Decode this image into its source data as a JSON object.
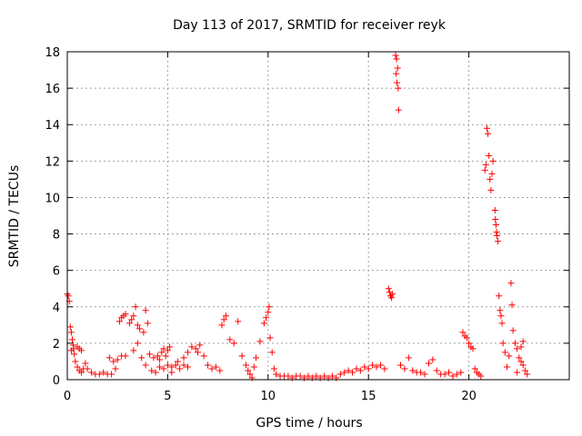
{
  "chart_data": {
    "type": "scatter",
    "title": "Day 113 of 2017, SRMTID for receiver reyk",
    "xlabel": "GPS time / hours",
    "ylabel": "SRMTID / TECUs",
    "xlim": [
      0,
      25
    ],
    "ylim": [
      0,
      18
    ],
    "xticks": [
      0,
      5,
      10,
      15,
      20
    ],
    "yticks": [
      0,
      2,
      4,
      6,
      8,
      10,
      12,
      14,
      16,
      18
    ],
    "grid": true,
    "marker": "plus",
    "color": "#ff0000",
    "series": [
      {
        "points": [
          [
            0.0,
            4.7
          ],
          [
            0.05,
            4.6
          ],
          [
            0.1,
            4.3
          ],
          [
            0.15,
            2.9
          ],
          [
            0.2,
            2.6
          ],
          [
            0.25,
            2.2
          ],
          [
            0.3,
            1.7
          ],
          [
            0.35,
            1.4
          ],
          [
            0.4,
            1.0
          ],
          [
            0.5,
            0.7
          ],
          [
            0.6,
            0.5
          ],
          [
            0.7,
            0.4
          ],
          [
            0.8,
            0.6
          ],
          [
            0.9,
            0.9
          ],
          [
            0.2,
            1.6
          ],
          [
            0.3,
            1.9
          ],
          [
            0.5,
            1.8
          ],
          [
            0.6,
            1.7
          ],
          [
            0.7,
            1.6
          ],
          [
            1.0,
            0.6
          ],
          [
            1.2,
            0.4
          ],
          [
            1.4,
            0.3
          ],
          [
            1.6,
            0.3
          ],
          [
            1.8,
            0.4
          ],
          [
            2.0,
            0.3
          ],
          [
            2.2,
            0.3
          ],
          [
            2.4,
            0.6
          ],
          [
            2.5,
            1.1
          ],
          [
            2.7,
            1.3
          ],
          [
            2.9,
            1.3
          ],
          [
            2.1,
            1.2
          ],
          [
            2.3,
            1.0
          ],
          [
            2.6,
            3.2
          ],
          [
            2.7,
            3.4
          ],
          [
            2.8,
            3.5
          ],
          [
            2.9,
            3.6
          ],
          [
            3.1,
            3.1
          ],
          [
            3.2,
            3.3
          ],
          [
            3.3,
            3.5
          ],
          [
            3.4,
            4.0
          ],
          [
            3.5,
            3.0
          ],
          [
            3.6,
            2.8
          ],
          [
            3.8,
            2.6
          ],
          [
            4.0,
            3.1
          ],
          [
            3.9,
            3.8
          ],
          [
            3.3,
            1.6
          ],
          [
            3.5,
            2.0
          ],
          [
            3.7,
            1.2
          ],
          [
            3.9,
            0.8
          ],
          [
            4.1,
            1.4
          ],
          [
            4.3,
            1.2
          ],
          [
            4.5,
            1.3
          ],
          [
            4.6,
            1.1
          ],
          [
            4.7,
            1.5
          ],
          [
            4.8,
            1.7
          ],
          [
            4.9,
            1.3
          ],
          [
            5.0,
            1.6
          ],
          [
            5.1,
            1.8
          ],
          [
            4.2,
            0.5
          ],
          [
            4.4,
            0.4
          ],
          [
            4.6,
            0.7
          ],
          [
            4.8,
            0.6
          ],
          [
            5.0,
            0.8
          ],
          [
            5.2,
            0.7
          ],
          [
            5.4,
            0.8
          ],
          [
            5.6,
            0.6
          ],
          [
            5.8,
            0.8
          ],
          [
            6.0,
            0.7
          ],
          [
            5.2,
            0.4
          ],
          [
            5.5,
            1.0
          ],
          [
            5.8,
            1.2
          ],
          [
            6.0,
            1.5
          ],
          [
            6.2,
            1.8
          ],
          [
            6.4,
            1.7
          ],
          [
            6.5,
            1.5
          ],
          [
            6.6,
            1.9
          ],
          [
            6.8,
            1.3
          ],
          [
            7.0,
            0.8
          ],
          [
            7.2,
            0.6
          ],
          [
            7.4,
            0.7
          ],
          [
            7.6,
            0.5
          ],
          [
            7.7,
            3.0
          ],
          [
            7.8,
            3.3
          ],
          [
            7.9,
            3.5
          ],
          [
            8.1,
            2.2
          ],
          [
            8.3,
            2.0
          ],
          [
            8.5,
            3.2
          ],
          [
            8.7,
            1.3
          ],
          [
            8.9,
            0.8
          ],
          [
            9.0,
            0.5
          ],
          [
            9.1,
            0.3
          ],
          [
            9.2,
            0.1
          ],
          [
            9.3,
            0.7
          ],
          [
            9.4,
            1.2
          ],
          [
            9.6,
            2.1
          ],
          [
            9.8,
            3.1
          ],
          [
            9.9,
            3.4
          ],
          [
            10.0,
            3.7
          ],
          [
            10.05,
            4.0
          ],
          [
            10.1,
            2.3
          ],
          [
            10.2,
            1.5
          ],
          [
            10.3,
            0.6
          ],
          [
            10.4,
            0.3
          ],
          [
            10.6,
            0.2
          ],
          [
            10.8,
            0.2
          ],
          [
            11.0,
            0.2
          ],
          [
            11.2,
            0.1
          ],
          [
            11.4,
            0.2
          ],
          [
            11.6,
            0.2
          ],
          [
            11.8,
            0.1
          ],
          [
            12.0,
            0.2
          ],
          [
            12.2,
            0.1
          ],
          [
            12.4,
            0.2
          ],
          [
            12.6,
            0.1
          ],
          [
            12.8,
            0.2
          ],
          [
            13.0,
            0.1
          ],
          [
            13.2,
            0.2
          ],
          [
            13.4,
            0.1
          ],
          [
            13.6,
            0.3
          ],
          [
            13.8,
            0.4
          ],
          [
            14.0,
            0.5
          ],
          [
            14.2,
            0.4
          ],
          [
            14.4,
            0.6
          ],
          [
            14.6,
            0.5
          ],
          [
            14.8,
            0.7
          ],
          [
            15.0,
            0.6
          ],
          [
            15.2,
            0.8
          ],
          [
            15.4,
            0.7
          ],
          [
            15.6,
            0.8
          ],
          [
            15.8,
            0.6
          ],
          [
            16.0,
            5.0
          ],
          [
            16.05,
            4.8
          ],
          [
            16.1,
            4.6
          ],
          [
            16.15,
            4.5
          ],
          [
            16.2,
            4.7
          ],
          [
            16.35,
            17.8
          ],
          [
            16.4,
            17.6
          ],
          [
            16.45,
            17.1
          ],
          [
            16.38,
            16.8
          ],
          [
            16.42,
            16.3
          ],
          [
            16.48,
            16.0
          ],
          [
            16.5,
            14.8
          ],
          [
            16.6,
            0.8
          ],
          [
            16.8,
            0.6
          ],
          [
            17.0,
            1.2
          ],
          [
            17.2,
            0.5
          ],
          [
            17.4,
            0.4
          ],
          [
            17.6,
            0.4
          ],
          [
            17.8,
            0.3
          ],
          [
            18.0,
            0.9
          ],
          [
            18.2,
            1.1
          ],
          [
            18.4,
            0.5
          ],
          [
            18.6,
            0.3
          ],
          [
            18.8,
            0.3
          ],
          [
            19.0,
            0.4
          ],
          [
            19.2,
            0.2
          ],
          [
            19.4,
            0.3
          ],
          [
            19.6,
            0.4
          ],
          [
            19.7,
            2.6
          ],
          [
            19.8,
            2.4
          ],
          [
            19.9,
            2.3
          ],
          [
            20.0,
            2.0
          ],
          [
            20.1,
            1.8
          ],
          [
            20.2,
            1.7
          ],
          [
            20.3,
            0.6
          ],
          [
            20.4,
            0.4
          ],
          [
            20.5,
            0.3
          ],
          [
            20.6,
            0.2
          ],
          [
            20.8,
            11.5
          ],
          [
            20.85,
            11.8
          ],
          [
            20.9,
            13.8
          ],
          [
            20.95,
            13.5
          ],
          [
            21.0,
            12.3
          ],
          [
            21.05,
            11.0
          ],
          [
            21.1,
            10.4
          ],
          [
            21.15,
            11.3
          ],
          [
            21.2,
            12.0
          ],
          [
            21.3,
            9.3
          ],
          [
            21.32,
            8.8
          ],
          [
            21.35,
            8.5
          ],
          [
            21.38,
            8.1
          ],
          [
            21.4,
            7.9
          ],
          [
            21.45,
            7.6
          ],
          [
            21.5,
            4.6
          ],
          [
            21.55,
            3.8
          ],
          [
            21.6,
            3.5
          ],
          [
            21.65,
            3.1
          ],
          [
            21.7,
            2.0
          ],
          [
            21.8,
            1.5
          ],
          [
            21.9,
            0.7
          ],
          [
            22.0,
            1.3
          ],
          [
            22.1,
            5.3
          ],
          [
            22.15,
            4.1
          ],
          [
            22.2,
            2.7
          ],
          [
            22.3,
            2.0
          ],
          [
            22.4,
            1.7
          ],
          [
            22.5,
            1.2
          ],
          [
            22.6,
            1.0
          ],
          [
            22.7,
            0.8
          ],
          [
            22.8,
            0.5
          ],
          [
            22.9,
            0.3
          ],
          [
            22.4,
            0.4
          ],
          [
            22.6,
            1.8
          ],
          [
            22.7,
            2.1
          ]
        ]
      }
    ]
  }
}
